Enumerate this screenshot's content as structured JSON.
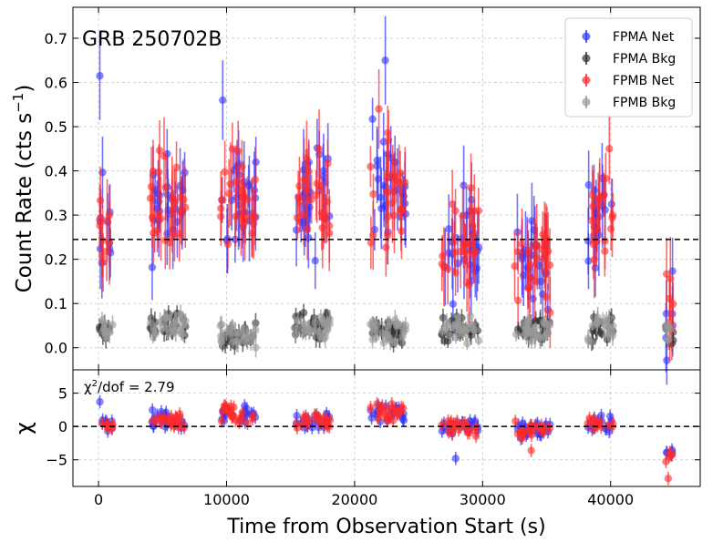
{
  "chart_data": [
    {
      "type": "scatter",
      "panel": "top",
      "title": "GRB 250702B",
      "xlabel": "",
      "ylabel": "Count Rate (cts s⁻¹)",
      "ylabel_main": "Count Rate (cts s",
      "ylabel_sup": "−1",
      "ylabel_tail": ")",
      "xlim": [
        -2000,
        47000
      ],
      "ylim": [
        -0.05,
        0.77
      ],
      "x_ticks": [
        0,
        10000,
        20000,
        30000,
        40000
      ],
      "y_ticks": [
        0.0,
        0.1,
        0.2,
        0.3,
        0.4,
        0.5,
        0.6,
        0.7
      ],
      "y_tick_labels": [
        "0.0",
        "0.1",
        "0.2",
        "0.3",
        "0.4",
        "0.5",
        "0.6",
        "0.7"
      ],
      "grid": true,
      "reference_line": {
        "y": 0.245,
        "style": "dashed"
      },
      "legend_position": "top-right",
      "series": [
        {
          "name": "FPMA Net",
          "color": "#3333ff",
          "level": "net",
          "seed": 11
        },
        {
          "name": "FPMA Bkg",
          "color": "#333333",
          "level": "bkg",
          "seed": 23
        },
        {
          "name": "FPMB Net",
          "color": "#ff2a2a",
          "level": "net",
          "seed": 37
        },
        {
          "name": "FPMB Bkg",
          "color": "#999999",
          "level": "bkg",
          "seed": 51
        }
      ],
      "orbits": [
        {
          "start": 0,
          "end": 1100,
          "net_mean": 0.28,
          "bkg_mean": 0.04
        },
        {
          "start": 4000,
          "end": 6800,
          "net_mean": 0.33,
          "bkg_mean": 0.05
        },
        {
          "start": 9500,
          "end": 12300,
          "net_mean": 0.33,
          "bkg_mean": 0.03
        },
        {
          "start": 15300,
          "end": 18100,
          "net_mean": 0.33,
          "bkg_mean": 0.05
        },
        {
          "start": 21200,
          "end": 24000,
          "net_mean": 0.36,
          "bkg_mean": 0.04
        },
        {
          "start": 26800,
          "end": 29700,
          "net_mean": 0.22,
          "bkg_mean": 0.04
        },
        {
          "start": 32500,
          "end": 35300,
          "net_mean": 0.2,
          "bkg_mean": 0.04
        },
        {
          "start": 38200,
          "end": 40200,
          "net_mean": 0.29,
          "bkg_mean": 0.04
        },
        {
          "start": 44300,
          "end": 44900,
          "net_mean": 0.07,
          "bkg_mean": 0.03
        }
      ],
      "highlights": [
        {
          "x": 100,
          "y": 0.615,
          "series": "FPMA Net",
          "err": 0.1
        },
        {
          "x": 9700,
          "y": 0.56,
          "series": "FPMA Net",
          "err": 0.09
        },
        {
          "x": 22400,
          "y": 0.65,
          "series": "FPMA Net",
          "err": 0.1
        },
        {
          "x": 21900,
          "y": 0.54,
          "series": "FPMB Net",
          "err": 0.09
        },
        {
          "x": 39900,
          "y": 0.45,
          "series": "FPMB Net",
          "err": 0.08
        }
      ]
    },
    {
      "type": "scatter",
      "panel": "bottom",
      "xlabel": "Time from Observation Start (s)",
      "ylabel": "χ",
      "xlim": [
        -2000,
        47000
      ],
      "ylim": [
        -9,
        8.5
      ],
      "x_ticks": [
        0,
        10000,
        20000,
        30000,
        40000
      ],
      "x_tick_labels": [
        "0",
        "10000",
        "20000",
        "30000",
        "40000"
      ],
      "y_ticks": [
        -5,
        0,
        5
      ],
      "y_tick_labels": [
        "−5",
        "0",
        "5"
      ],
      "grid": true,
      "reference_line": {
        "y": 0,
        "style": "dashed"
      },
      "annotation": "χ²/dof = 2.79",
      "annotation_parts": {
        "chi": "χ",
        "sup": "2",
        "rest": "/dof = 2.79"
      },
      "series": [
        {
          "name": "FPMA Net",
          "color": "#3333ff",
          "seed": 71
        },
        {
          "name": "FPMB Net",
          "color": "#ff2a2a",
          "seed": 89
        }
      ],
      "orbit_chi_means": [
        0.3,
        1.0,
        1.8,
        0.8,
        2.2,
        0.0,
        -0.6,
        0.5,
        -4.5
      ],
      "highlights": [
        {
          "x": 100,
          "y": 3.7,
          "series": "FPMA Net"
        },
        {
          "x": 27900,
          "y": -4.8,
          "series": "FPMA Net"
        },
        {
          "x": 44500,
          "y": -7.8,
          "series": "FPMB Net"
        },
        {
          "x": 33800,
          "y": -3.6,
          "series": "FPMB Net"
        }
      ]
    }
  ]
}
